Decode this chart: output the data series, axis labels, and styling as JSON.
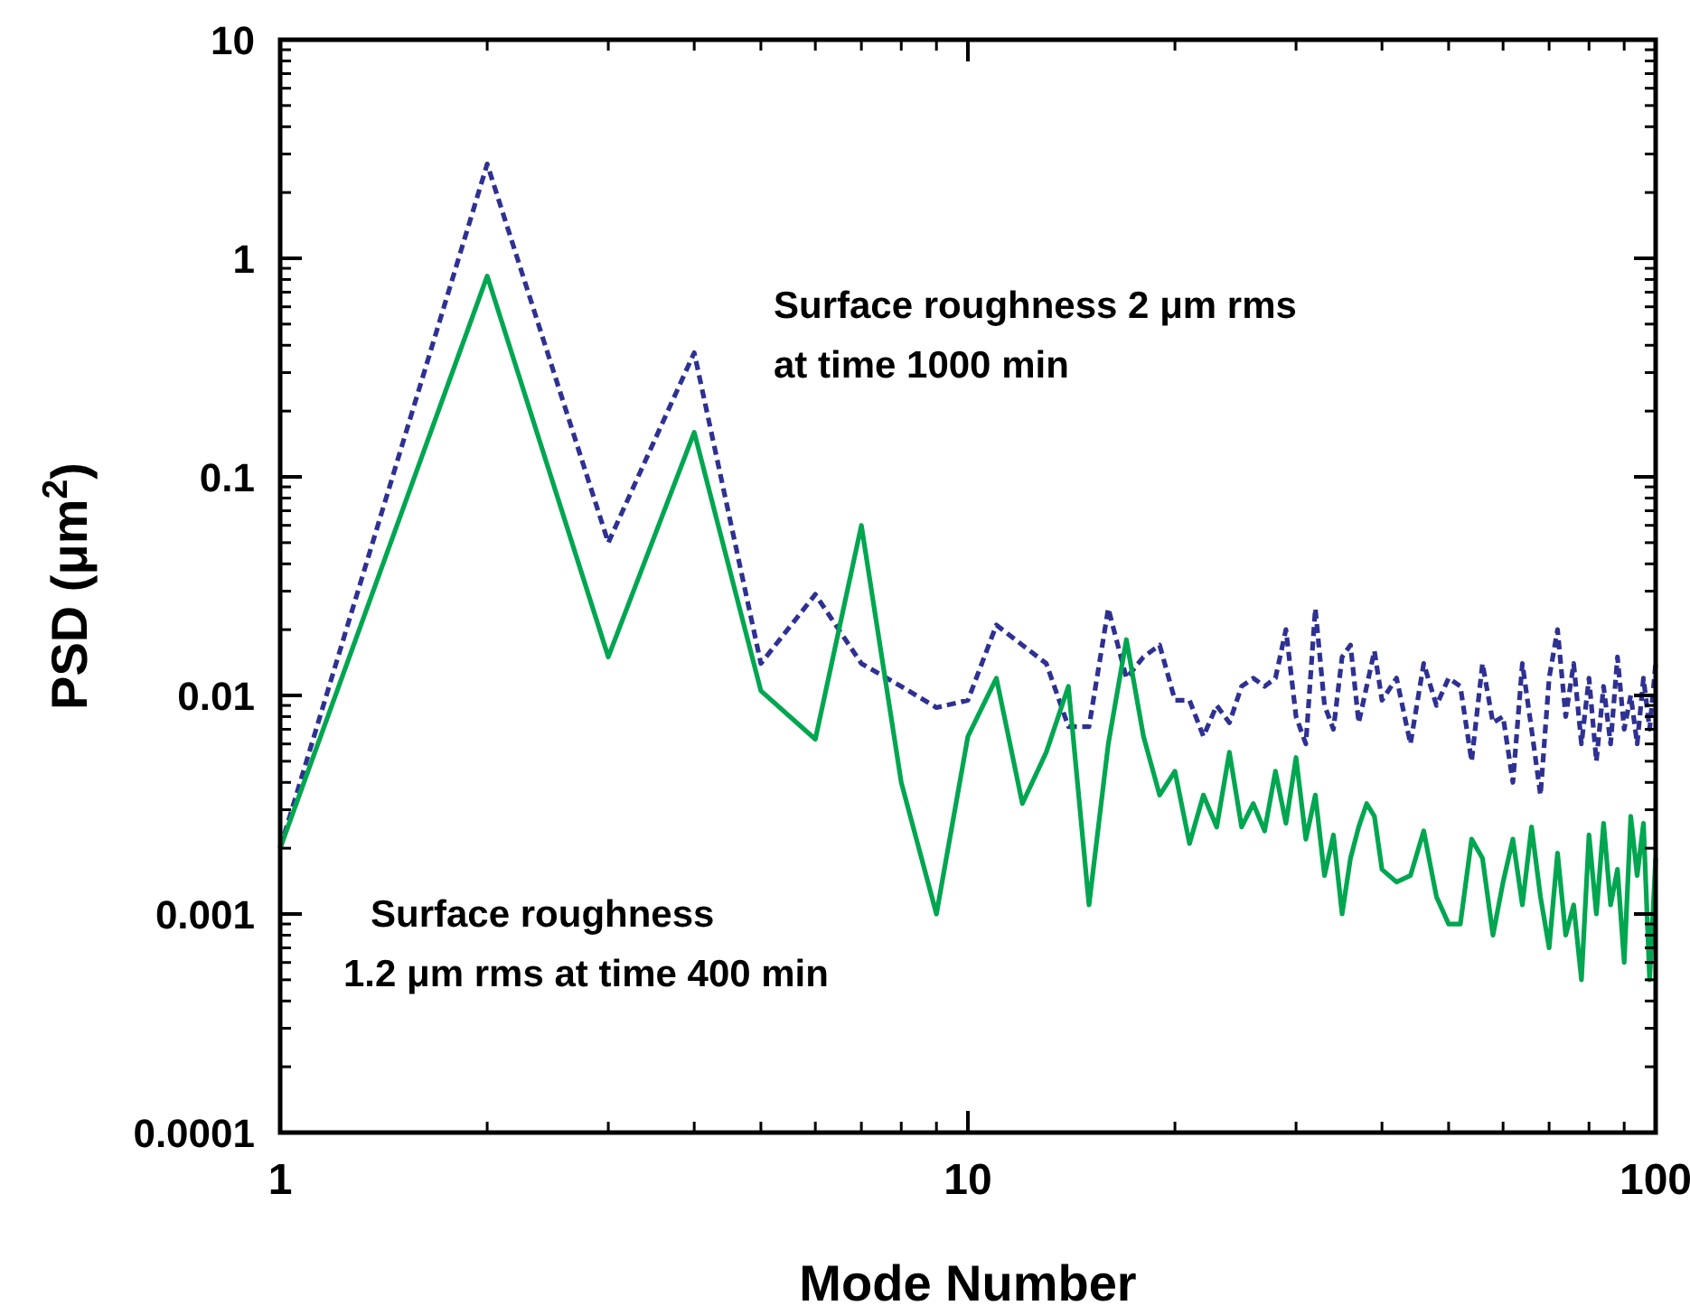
{
  "chart_data": {
    "type": "line",
    "xlabel": "Mode Number",
    "ylabel": "PSD (μm$^{2}$)",
    "log": "xy",
    "xlim": [
      1,
      100
    ],
    "ylim": [
      0.0001,
      10
    ],
    "xticks": [
      1,
      10,
      100
    ],
    "yticks": [
      0.0001,
      0.001,
      0.01,
      0.1,
      1,
      10
    ],
    "annotations": [
      "Surface roughness 2 μm rms\nat time 1000 min",
      "Surface roughness\n1.2 μm rms at time 400 min"
    ],
    "series": [
      {
        "color": "#2e3192",
        "line_style": "dashed",
        "x": [
          1,
          2,
          3,
          4,
          5,
          6,
          7,
          8,
          9,
          10,
          11,
          12,
          13,
          14,
          15,
          16,
          17,
          18,
          19,
          20,
          21,
          22,
          23,
          24,
          25,
          26,
          27,
          28,
          29,
          30,
          31,
          32,
          33,
          34,
          35,
          36,
          37,
          38,
          39,
          40,
          42,
          44,
          46,
          48,
          50,
          52,
          54,
          56,
          58,
          60,
          62,
          64,
          66,
          68,
          70,
          72,
          74,
          76,
          78,
          80,
          82,
          84,
          86,
          88,
          90,
          92,
          94,
          96,
          98,
          100
        ],
        "values": [
          0.002,
          2.7,
          0.05,
          0.37,
          0.014,
          0.029,
          0.014,
          0.011,
          0.0088,
          0.0095,
          0.021,
          0.017,
          0.014,
          0.0072,
          0.0072,
          0.025,
          0.012,
          0.015,
          0.017,
          0.0095,
          0.0095,
          0.0065,
          0.009,
          0.0075,
          0.011,
          0.012,
          0.011,
          0.012,
          0.02,
          0.008,
          0.006,
          0.025,
          0.009,
          0.007,
          0.015,
          0.017,
          0.0075,
          0.011,
          0.016,
          0.0095,
          0.012,
          0.006,
          0.014,
          0.009,
          0.012,
          0.011,
          0.005,
          0.014,
          0.0075,
          0.008,
          0.004,
          0.014,
          0.007,
          0.0035,
          0.012,
          0.02,
          0.008,
          0.014,
          0.006,
          0.012,
          0.005,
          0.011,
          0.006,
          0.015,
          0.007,
          0.01,
          0.006,
          0.012,
          0.007,
          0.014
        ]
      },
      {
        "color": "#00a650",
        "line_style": "solid",
        "x": [
          1,
          2,
          3,
          4,
          5,
          6,
          7,
          8,
          9,
          10,
          11,
          12,
          13,
          14,
          15,
          16,
          17,
          18,
          19,
          20,
          21,
          22,
          23,
          24,
          25,
          26,
          27,
          28,
          29,
          30,
          31,
          32,
          33,
          34,
          35,
          36,
          37,
          38,
          39,
          40,
          42,
          44,
          46,
          48,
          50,
          52,
          54,
          56,
          58,
          60,
          62,
          64,
          66,
          68,
          70,
          72,
          74,
          76,
          78,
          80,
          82,
          84,
          86,
          88,
          90,
          92,
          94,
          96,
          98,
          100
        ],
        "values": [
          0.002,
          0.83,
          0.015,
          0.16,
          0.0105,
          0.0063,
          0.06,
          0.004,
          0.001,
          0.0065,
          0.012,
          0.0032,
          0.0055,
          0.011,
          0.0011,
          0.006,
          0.018,
          0.0065,
          0.0035,
          0.0045,
          0.0021,
          0.0035,
          0.0025,
          0.0055,
          0.0025,
          0.0032,
          0.0024,
          0.0045,
          0.0026,
          0.0052,
          0.0022,
          0.0035,
          0.0015,
          0.0023,
          0.001,
          0.0018,
          0.0025,
          0.0032,
          0.0028,
          0.0016,
          0.0014,
          0.0015,
          0.0024,
          0.0012,
          0.0009,
          0.0009,
          0.0022,
          0.0018,
          0.0008,
          0.0014,
          0.0022,
          0.0011,
          0.0025,
          0.0012,
          0.0007,
          0.0019,
          0.0008,
          0.0011,
          0.0005,
          0.0023,
          0.001,
          0.0026,
          0.0011,
          0.0016,
          0.0006,
          0.0028,
          0.0015,
          0.0026,
          0.0005,
          0.0018
        ]
      }
    ]
  }
}
